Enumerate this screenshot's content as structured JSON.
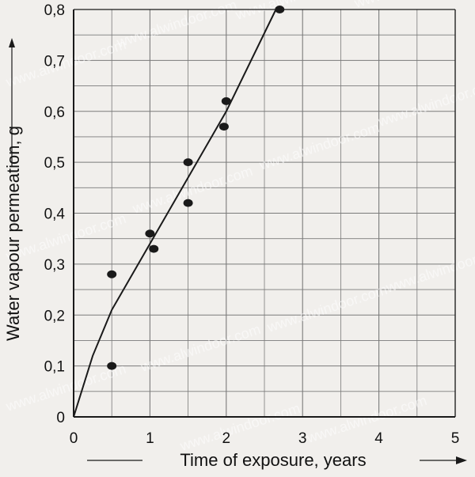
{
  "chart_data": {
    "type": "scatter",
    "xlabel": "Time of exposure, years",
    "ylabel": "Water vapour permeation, g",
    "xlim": [
      0,
      5
    ],
    "ylim": [
      0,
      0.8
    ],
    "x_ticks": [
      "0",
      "1",
      "2",
      "3",
      "4",
      "5"
    ],
    "y_ticks": [
      "0",
      "0,1",
      "0,2",
      "0,3",
      "0,4",
      "0,5",
      "0,6",
      "0,7",
      "0,8"
    ],
    "grid": true,
    "points": [
      {
        "x": 0.5,
        "y": 0.1
      },
      {
        "x": 0.5,
        "y": 0.28
      },
      {
        "x": 1.0,
        "y": 0.36
      },
      {
        "x": 1.05,
        "y": 0.33
      },
      {
        "x": 1.5,
        "y": 0.5
      },
      {
        "x": 1.5,
        "y": 0.42
      },
      {
        "x": 2.0,
        "y": 0.62
      },
      {
        "x": 1.97,
        "y": 0.57
      },
      {
        "x": 2.7,
        "y": 0.8
      }
    ],
    "fit_line": [
      {
        "x": 0,
        "y": 0
      },
      {
        "x": 0.25,
        "y": 0.12
      },
      {
        "x": 0.5,
        "y": 0.21
      },
      {
        "x": 1.0,
        "y": 0.34
      },
      {
        "x": 2.0,
        "y": 0.6
      },
      {
        "x": 2.65,
        "y": 0.8
      }
    ],
    "colors": {
      "ink": "#1a1a1a",
      "grid": "#7a7a7a",
      "background": "#f1efec",
      "watermark": "#ffffff"
    }
  },
  "watermark": "www.alwindoor.com"
}
